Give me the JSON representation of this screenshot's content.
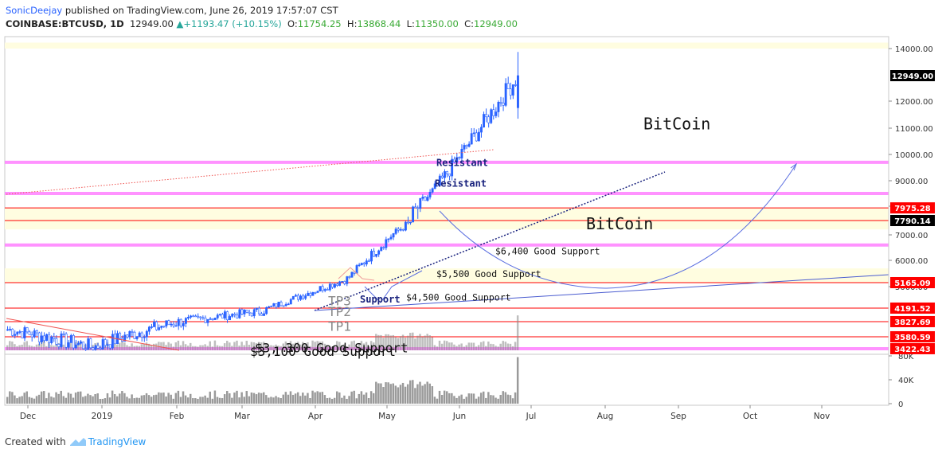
{
  "header": {
    "author": "SonicDeejay",
    "published": "published on TradingView.com, June 26, 2019 17:57:07 CST",
    "symbol": "COINBASE:BTCUSD, 1D",
    "last": "12949.00",
    "change": "+1193.47 (+10.15%)",
    "o_label": "O:",
    "o_value": "11754.25",
    "h_label": "H:",
    "h_value": "13868.44",
    "l_label": "L:",
    "l_value": "11350.00",
    "c_label": "C:",
    "c_value": "12949.00"
  },
  "footer": {
    "created_with": "Created with",
    "brand": "TradingView"
  },
  "colors": {
    "up": "#26a69a",
    "down": "#ef5350",
    "candle": "#2962ff",
    "volume": "#888888",
    "magenta_line": "#ff80ff",
    "red_line": "#ff0000",
    "yellow_zone": "#fffde0",
    "annotation": "#1a237e",
    "price_tag_red": "#ff0000",
    "price_tag_black": "#000000"
  },
  "chart_data": {
    "type": "candlestick",
    "title": "",
    "price_ylim": [
      3100,
      14700
    ],
    "volume_ylim": [
      0,
      80000
    ],
    "x_ticks": [
      "Dec",
      "2019",
      "Feb",
      "Mar",
      "Apr",
      "May",
      "Jun",
      "Jul",
      "Aug",
      "Sep",
      "Oct",
      "Nov"
    ],
    "y_ticks": [
      "14000.00",
      "12000.00",
      "11000.00",
      "10000.00",
      "9000.00",
      "8000.00",
      "7000.00",
      "6000.00",
      "5000.00"
    ],
    "volume_ticks": [
      "80K",
      "40K",
      "0"
    ],
    "price_tags": [
      {
        "label": "12949.00",
        "value": 12949,
        "style": "black"
      },
      {
        "label": "7975.28",
        "value": 7975.28,
        "style": "red"
      },
      {
        "label": "7790.14",
        "value": 7790.14,
        "style": "black"
      },
      {
        "label": "5165.09",
        "value": 5165.09,
        "style": "red"
      },
      {
        "label": "4191.52",
        "value": 4191.52,
        "style": "red"
      },
      {
        "label": "3827.69",
        "value": 3827.69,
        "style": "red"
      },
      {
        "label": "3580.59",
        "value": 3580.59,
        "style": "red"
      },
      {
        "label": "3422.43",
        "value": 3422.43,
        "style": "red"
      }
    ],
    "monthly_closes": [
      {
        "month": "Dec",
        "close": 3700
      },
      {
        "month": "Jan",
        "close": 3440
      },
      {
        "month": "Feb",
        "close": 3830
      },
      {
        "month": "Mar",
        "close": 4110
      },
      {
        "month": "Apr",
        "close": 5320
      },
      {
        "month": "May",
        "close": 8560
      },
      {
        "month": "Jun",
        "close": 12949
      }
    ],
    "last_candle": {
      "open": 11754.25,
      "high": 13868.44,
      "low": 11350.0,
      "close": 12949.0
    },
    "annotations": [
      {
        "text": "BitCoin",
        "value": 10950
      },
      {
        "text": "BitCoin",
        "value": 7300
      },
      {
        "text": "Resistant",
        "value": 9560
      },
      {
        "text": "Resistant",
        "value": 8760
      },
      {
        "text": "$6,400 Good Support",
        "value": 6230
      },
      {
        "text": "$5,500 Good Support",
        "value": 5370
      },
      {
        "text": "$4,500 Good Support",
        "value": 4470
      },
      {
        "text": "Support",
        "value": 4400
      },
      {
        "text": "TP3",
        "value": 4300
      },
      {
        "text": "TP2",
        "value": 3980
      },
      {
        "text": "TP1",
        "value": 3680
      },
      {
        "text": "$3, 300 Good Support",
        "value": 3280
      },
      {
        "text": "$3,100 Good Support",
        "value": 3150
      }
    ],
    "horizontal_levels": [
      {
        "value": 9700,
        "color": "magenta"
      },
      {
        "value": 8500,
        "color": "magenta"
      },
      {
        "value": 7975.28,
        "color": "red"
      },
      {
        "value": 7790.14,
        "color": "red"
      },
      {
        "value": 6600,
        "color": "magenta"
      },
      {
        "value": 5165.09,
        "color": "red"
      },
      {
        "value": 4191.52,
        "color": "red"
      },
      {
        "value": 3827.69,
        "color": "red"
      },
      {
        "value": 3580.59,
        "color": "red"
      },
      {
        "value": 3422.43,
        "color": "magenta"
      }
    ],
    "zones": [
      {
        "from": 14000,
        "to": 14250
      },
      {
        "from": 7300,
        "to": 7975.28
      },
      {
        "from": 5165.09,
        "to": 5700
      }
    ]
  }
}
